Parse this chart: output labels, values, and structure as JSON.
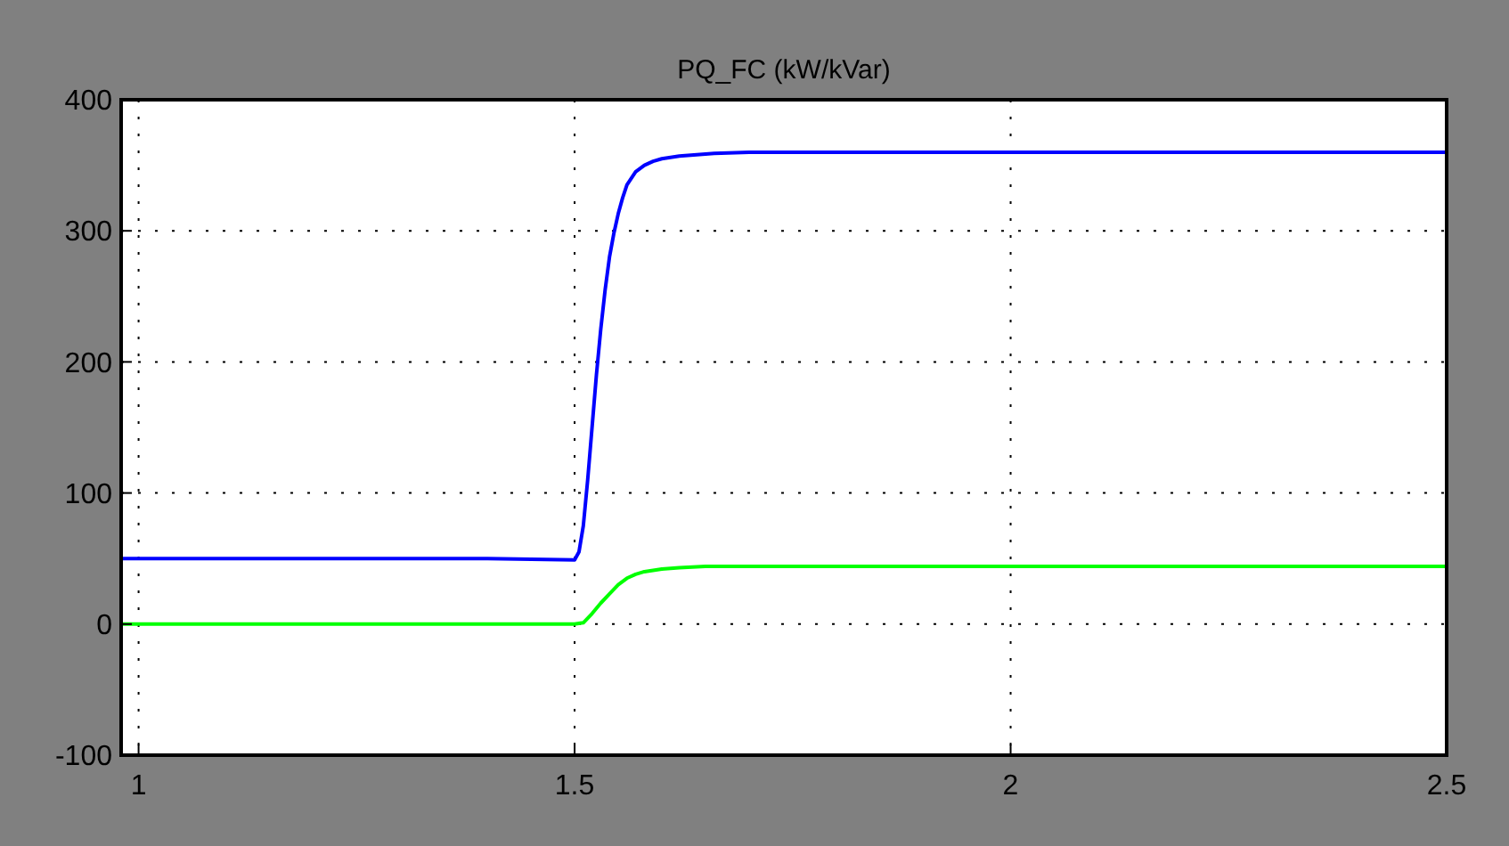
{
  "chart_data": {
    "type": "line",
    "title": "PQ_FC (kW/kVar)",
    "xlim": [
      0.98,
      2.5
    ],
    "xticks": [
      1,
      1.5,
      2,
      2.5
    ],
    "ylim": [
      -100,
      400
    ],
    "yticks": [
      -100,
      0,
      100,
      200,
      300,
      400
    ],
    "grid": true,
    "line_style": "solid",
    "series": [
      {
        "color": "#0000ff",
        "x": [
          0.98,
          1.2,
          1.4,
          1.5,
          1.505,
          1.51,
          1.515,
          1.52,
          1.525,
          1.53,
          1.535,
          1.54,
          1.545,
          1.55,
          1.555,
          1.56,
          1.57,
          1.58,
          1.59,
          1.6,
          1.62,
          1.64,
          1.66,
          1.7,
          1.8,
          2,
          2.2,
          2.5
        ],
        "values": [
          50,
          50,
          50,
          49,
          55,
          75,
          110,
          150,
          190,
          225,
          255,
          280,
          298,
          313,
          325,
          335,
          345,
          350,
          353,
          355,
          357,
          358,
          359,
          360,
          360,
          360,
          360,
          360
        ]
      },
      {
        "color": "#00ff00",
        "x": [
          0.98,
          1.2,
          1.4,
          1.5,
          1.51,
          1.52,
          1.53,
          1.54,
          1.55,
          1.56,
          1.57,
          1.58,
          1.6,
          1.62,
          1.65,
          1.7,
          1.8,
          2,
          2.2,
          2.5
        ],
        "values": [
          0,
          0,
          0,
          0,
          1,
          8,
          16,
          23,
          30,
          35,
          38,
          40,
          42,
          43,
          44,
          44,
          44,
          44,
          44,
          44
        ]
      }
    ]
  }
}
